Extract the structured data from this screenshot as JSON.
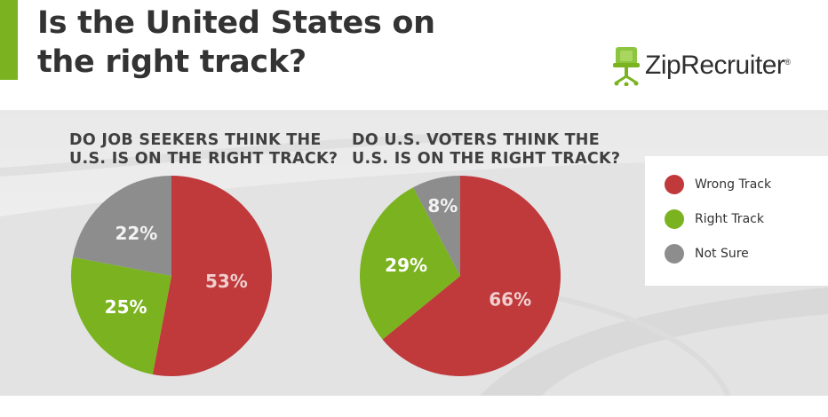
{
  "header": {
    "title_line1": "Is the United States on",
    "title_line2": "the right track?",
    "logo_text": "ZipRecruiter",
    "logo_mark": "®"
  },
  "legend": {
    "items": [
      {
        "label": "Wrong Track",
        "color": "#c0393b"
      },
      {
        "label": "Right Track",
        "color": "#7ab31f"
      },
      {
        "label": "Not Sure",
        "color": "#8d8d8d"
      }
    ]
  },
  "chart_data": [
    {
      "type": "pie",
      "title_line1": "DO JOB SEEKERS THINK THE",
      "title_line2": "U.S. IS ON THE RIGHT TRACK?",
      "slices": [
        {
          "label": "Wrong Track",
          "value": 53,
          "display": "53%",
          "color": "#c0393b"
        },
        {
          "label": "Right Track",
          "value": 25,
          "display": "25%",
          "color": "#7ab31f"
        },
        {
          "label": "Not Sure",
          "value": 22,
          "display": "22%",
          "color": "#8d8d8d"
        }
      ],
      "start_angle_deg": 0,
      "direction": "clockwise"
    },
    {
      "type": "pie",
      "title_line1": "DO U.S. VOTERS THINK THE",
      "title_line2": "U.S. IS ON THE RIGHT TRACK?",
      "slices": [
        {
          "label": "Wrong Track",
          "value": 66,
          "display": "66%",
          "color": "#c0393b"
        },
        {
          "label": "Right Track",
          "value": 29,
          "display": "29%",
          "color": "#7ab31f"
        },
        {
          "label": "Not Sure",
          "value": 8,
          "display": "8%",
          "color": "#8d8d8d"
        }
      ],
      "start_angle_deg": 0,
      "direction": "clockwise"
    }
  ]
}
